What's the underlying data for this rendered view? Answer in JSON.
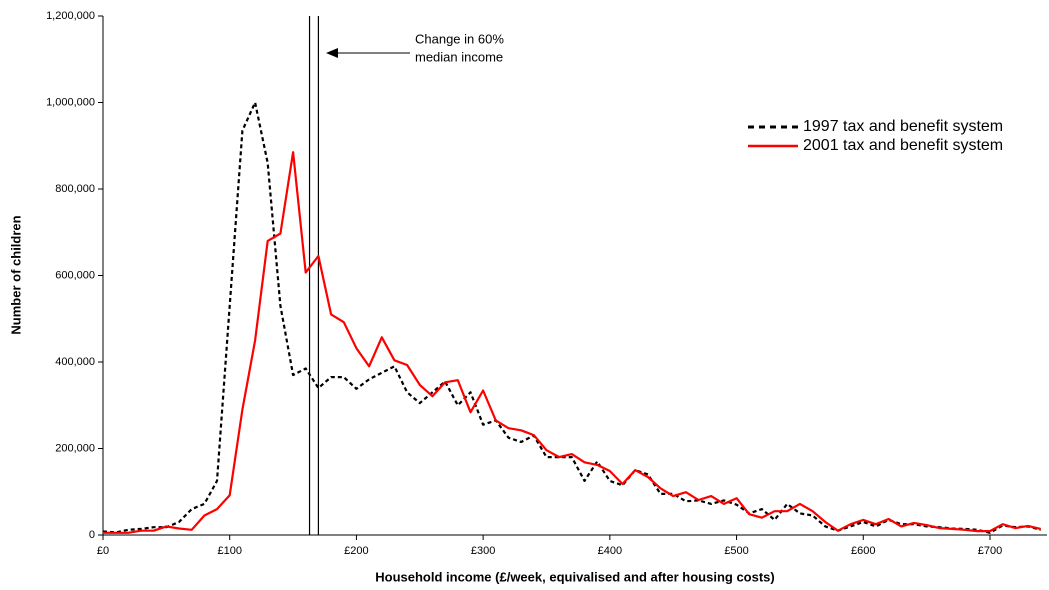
{
  "chart_data": {
    "type": "line",
    "x_label": "Household income (£/week, equivalised and after housing costs)",
    "y_label": "Number of children",
    "annotation": [
      "Change in 60%",
      "median income"
    ],
    "reference_lines": [
      163,
      170
    ],
    "x": [
      0,
      10,
      20,
      30,
      40,
      50,
      60,
      70,
      80,
      90,
      100,
      110,
      120,
      130,
      140,
      150,
      160,
      170,
      180,
      190,
      200,
      210,
      220,
      230,
      240,
      250,
      260,
      270,
      280,
      290,
      300,
      310,
      320,
      330,
      340,
      350,
      360,
      370,
      380,
      390,
      400,
      410,
      420,
      430,
      440,
      450,
      460,
      470,
      480,
      490,
      500,
      510,
      520,
      530,
      540,
      550,
      560,
      570,
      580,
      590,
      600,
      610,
      620,
      630,
      640,
      650,
      660,
      670,
      680,
      690,
      700,
      710,
      720,
      730,
      740
    ],
    "series": [
      {
        "name": "1997 tax and benefit system",
        "color": "#000000",
        "dash": true,
        "values": [
          8000,
          6000,
          12000,
          14000,
          18000,
          18000,
          30000,
          60000,
          72000,
          125000,
          530000,
          935000,
          1000000,
          860000,
          530000,
          370000,
          385000,
          340000,
          365000,
          365000,
          338000,
          360000,
          375000,
          390000,
          330000,
          305000,
          330000,
          355000,
          300000,
          330000,
          255000,
          265000,
          225000,
          215000,
          230000,
          180000,
          180000,
          180000,
          125000,
          170000,
          125000,
          115000,
          150000,
          140000,
          95000,
          95000,
          78000,
          80000,
          72000,
          80000,
          70000,
          50000,
          60000,
          35000,
          72000,
          50000,
          45000,
          20000,
          10000,
          20000,
          30000,
          20000,
          35000,
          25000,
          25000,
          20000,
          18000,
          15000,
          14000,
          12000,
          5000,
          22000,
          18000,
          20000,
          12000
        ]
      },
      {
        "name": "2001 tax and benefit system",
        "color": "#ff0000",
        "dash": false,
        "values": [
          5000,
          5000,
          5000,
          10000,
          10000,
          20000,
          15000,
          12000,
          45000,
          60000,
          92000,
          290000,
          450000,
          680000,
          697000,
          885000,
          607000,
          645000,
          510000,
          492000,
          432000,
          390000,
          457000,
          404000,
          393000,
          347000,
          321000,
          353000,
          358000,
          284000,
          334000,
          265000,
          247000,
          242000,
          231000,
          196000,
          180000,
          187000,
          168000,
          162000,
          148000,
          118000,
          150000,
          134000,
          108000,
          90000,
          99000,
          81000,
          90000,
          72000,
          85000,
          48000,
          40000,
          55000,
          55000,
          72000,
          55000,
          30000,
          10000,
          25000,
          35000,
          25000,
          37000,
          20000,
          28000,
          23000,
          16000,
          14000,
          12000,
          9000,
          9000,
          25000,
          16000,
          21000,
          14000
        ]
      }
    ],
    "xlim": [
      0,
      745
    ],
    "xticks": [
      {
        "value": 0,
        "label": "£0"
      },
      {
        "value": 100,
        "label": "£100"
      },
      {
        "value": 200,
        "label": "£200"
      },
      {
        "value": 300,
        "label": "£300"
      },
      {
        "value": 400,
        "label": "£400"
      },
      {
        "value": 500,
        "label": "£500"
      },
      {
        "value": 600,
        "label": "£600"
      },
      {
        "value": 700,
        "label": "£700"
      }
    ],
    "ylim": [
      0,
      1200000
    ],
    "yticks": [
      0,
      {
        "value": 200000,
        "label": "200,000"
      },
      {
        "value": 400000,
        "label": "400,000"
      },
      {
        "value": 600000,
        "label": "600,000"
      },
      {
        "value": 800000,
        "label": "800,000"
      },
      {
        "value": 1000000,
        "label": "1,000,000"
      },
      {
        "value": 1200000,
        "label": "1,200,000"
      }
    ],
    "grid": false
  }
}
